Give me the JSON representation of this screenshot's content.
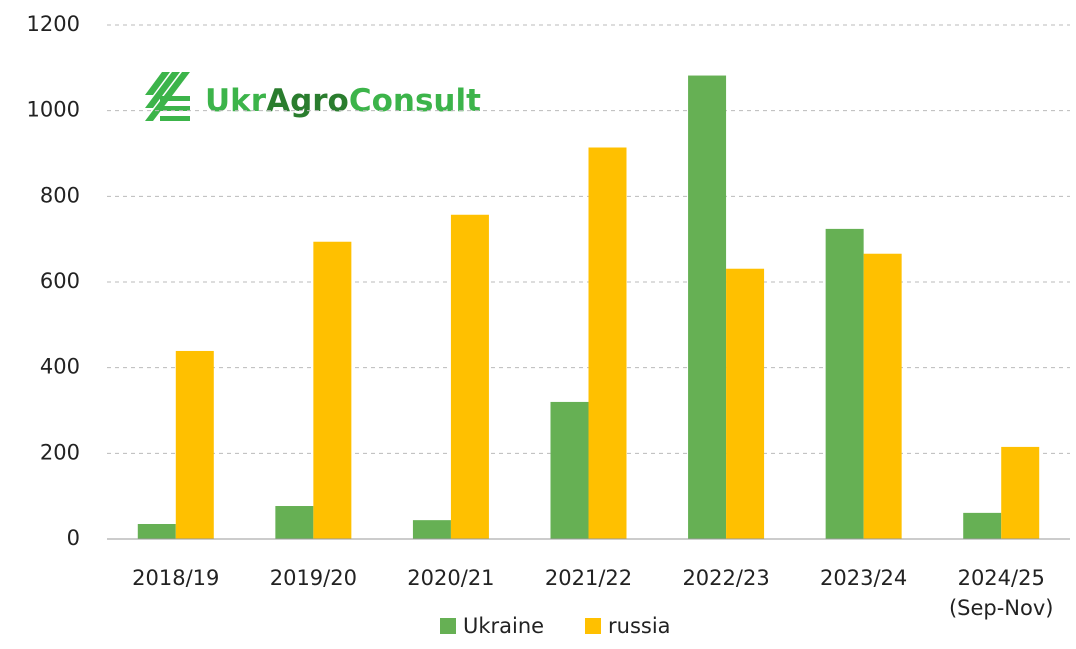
{
  "chart_data": {
    "type": "bar",
    "logo": [
      "Ukr",
      "Agro",
      "Consult"
    ],
    "categories": [
      "2018/19",
      "2019/20",
      "2020/21",
      "2021/22",
      "2022/23",
      "2023/24",
      "2024/25\n(Sep-Nov)"
    ],
    "series": [
      {
        "name": "Ukraine",
        "color": "#66b054",
        "values": [
          35,
          77,
          44,
          320,
          1082,
          724,
          61
        ]
      },
      {
        "name": "russia",
        "color": "#ffc000",
        "values": [
          439,
          694,
          757,
          914,
          631,
          666,
          215
        ]
      }
    ],
    "ylim": [
      0,
      1200
    ],
    "yticks": [
      0,
      200,
      400,
      600,
      800,
      1000,
      1200
    ],
    "grid": true
  }
}
